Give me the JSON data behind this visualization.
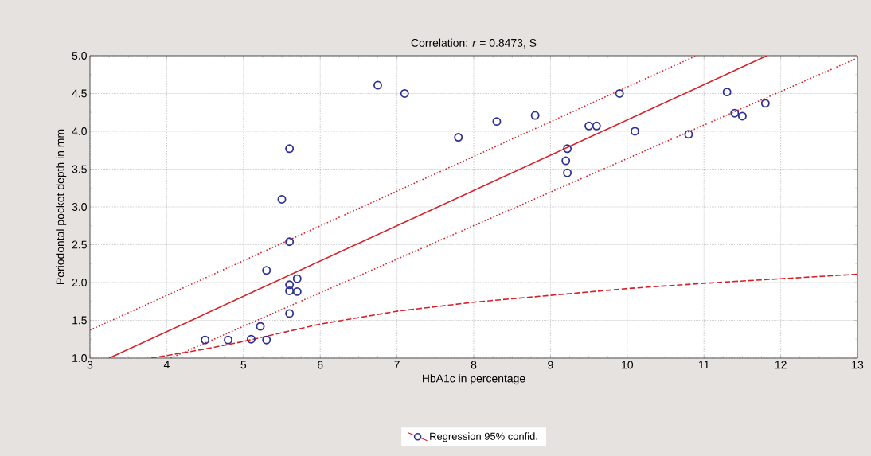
{
  "chart_data": {
    "type": "scatter",
    "title": "Correlation: *r* = 0.8473, S",
    "xlabel": "HbA1c in percentage",
    "ylabel": "Periodontal pocket depth in mm",
    "xlim": [
      3,
      13
    ],
    "ylim": [
      1,
      5
    ],
    "xticks": [
      3,
      4,
      5,
      6,
      7,
      8,
      9,
      10,
      11,
      12,
      13
    ],
    "yticks": [
      {
        "value": 1,
        "label": "1.0"
      },
      {
        "value": 1.5,
        "label": "1.5"
      },
      {
        "value": 2,
        "label": "2.0"
      },
      {
        "value": 2.5,
        "label": "2.5"
      },
      {
        "value": 3,
        "label": "3.0"
      },
      {
        "value": 3.5,
        "label": "3.5"
      },
      {
        "value": 4,
        "label": "4.0"
      },
      {
        "value": 4.5,
        "label": "4.5"
      },
      {
        "value": 5,
        "label": "5.0"
      }
    ],
    "grid": true,
    "legend": "bottom",
    "series": [
      {
        "name": "Regression 95% confid.",
        "marker": "circle",
        "color": "#2e3192",
        "x": [
          4.5,
          4.8,
          5.1,
          5.22,
          5.3,
          5.3,
          5.5,
          5.6,
          5.6,
          5.6,
          5.6,
          5.7,
          5.7,
          5.6,
          6.75,
          7.1,
          7.8,
          8.3,
          8.8,
          9.22,
          9.2,
          9.22,
          9.5,
          9.6,
          9.9,
          10.1,
          10.8,
          11.3,
          11.4,
          11.5,
          11.8
        ],
        "values": [
          1.24,
          1.24,
          1.25,
          1.42,
          1.24,
          2.16,
          3.1,
          3.77,
          2.54,
          1.97,
          1.89,
          2.05,
          1.88,
          1.59,
          4.61,
          4.5,
          3.92,
          4.13,
          4.21,
          3.77,
          3.61,
          3.45,
          4.07,
          4.07,
          4.5,
          4.0,
          3.96,
          4.52,
          4.24,
          4.2,
          4.37
        ]
      },
      {
        "type": "line",
        "line_style": "solid",
        "color": "#d62027",
        "x": [
          3.25,
          11.82
        ],
        "values": [
          1.0,
          5.0
        ]
      },
      {
        "type": "line",
        "line_style": "dotted",
        "color": "#d62027",
        "x": [
          3,
          10.9
        ],
        "values": [
          1.37,
          5.0
        ]
      },
      {
        "type": "line",
        "line_style": "dotted",
        "color": "#d62027",
        "x": [
          4.05,
          13
        ],
        "values": [
          1.0,
          4.97
        ]
      },
      {
        "type": "line",
        "line_style": "dashed",
        "color": "#d62027",
        "x": [
          3.8,
          4.5,
          5,
          6,
          7,
          8,
          9,
          10,
          11,
          12,
          13
        ],
        "values": [
          1.0,
          1.12,
          1.22,
          1.45,
          1.62,
          1.74,
          1.83,
          1.92,
          1.99,
          2.05,
          2.11
        ]
      }
    ]
  }
}
